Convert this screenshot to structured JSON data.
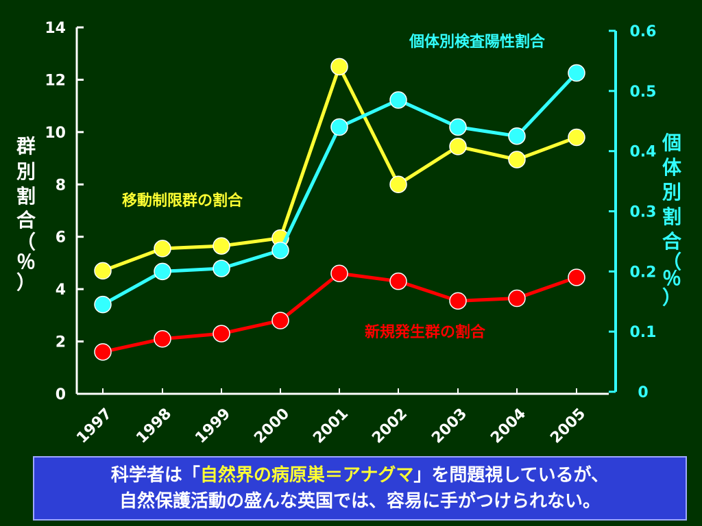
{
  "chart_data": {
    "type": "line",
    "categories": [
      "1997",
      "1998",
      "1999",
      "2000",
      "2001",
      "2002",
      "2003",
      "2004",
      "2005"
    ],
    "left_axis": {
      "label_chars": [
        "群",
        "別",
        "割",
        "合",
        "（",
        "％",
        "）"
      ],
      "ylim": [
        0,
        14
      ],
      "ticks": [
        "0",
        "2",
        "4",
        "6",
        "8",
        "10",
        "12",
        "14"
      ]
    },
    "right_axis": {
      "label_chars": [
        "個",
        "体",
        "別",
        "割",
        "合",
        "（",
        "％",
        "）"
      ],
      "ylim": [
        0,
        0.6
      ],
      "ticks": [
        "0",
        "0.1",
        "0.2",
        "0.3",
        "0.4",
        "0.5",
        "0.6"
      ]
    },
    "series": [
      {
        "name": "移動制限群の割合",
        "axis": "left",
        "color": "#ffff33",
        "values": [
          4.7,
          5.55,
          5.65,
          5.95,
          12.5,
          8.0,
          9.45,
          8.95,
          9.8
        ]
      },
      {
        "name": "個体別検査陽性割合",
        "axis": "right",
        "color": "#33ffff",
        "values": [
          0.145,
          0.2,
          0.205,
          0.235,
          0.44,
          0.485,
          0.44,
          0.425,
          0.53
        ]
      },
      {
        "name": "新規発生群の割合",
        "axis": "left",
        "color": "#ff0000",
        "values": [
          1.6,
          2.1,
          2.3,
          2.8,
          4.6,
          4.3,
          3.55,
          3.65,
          4.45
        ]
      }
    ]
  },
  "caption": {
    "line1_pre": "科学者は「",
    "line1_highlight": "自然界の病原巣＝アナグマ",
    "line1_post": "」を問題視しているが、",
    "line2": "自然保護活動の盛んな英国では、容易に手がつけられない。"
  }
}
